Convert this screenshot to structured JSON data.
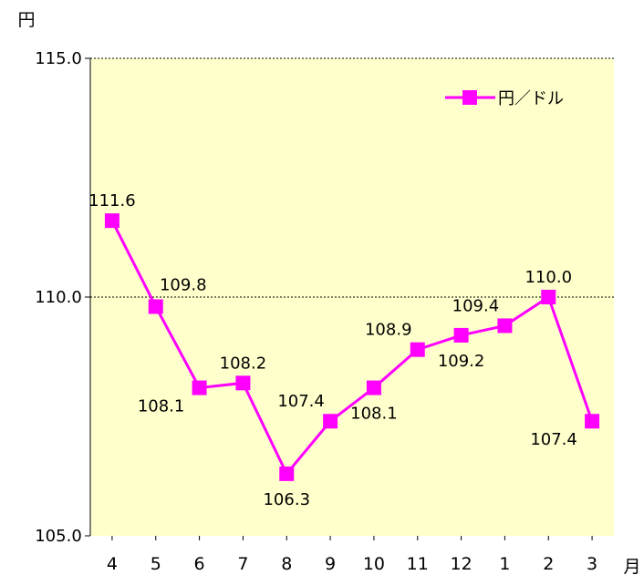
{
  "chart_data": {
    "type": "line",
    "y_unit": "円",
    "x_unit": "月",
    "categories": [
      "4",
      "5",
      "6",
      "7",
      "8",
      "9",
      "10",
      "11",
      "12",
      "1",
      "2",
      "3"
    ],
    "series": [
      {
        "name": "円／ドル",
        "values": [
          111.6,
          109.8,
          108.1,
          108.2,
          106.3,
          107.4,
          108.1,
          108.9,
          109.2,
          109.4,
          110.0,
          107.4
        ],
        "data_labels": [
          "111.6",
          "109.8",
          "108.1",
          "108.2",
          "106.3",
          "107.4",
          "108.1",
          "108.9",
          "109.2",
          "109.4",
          "110.0",
          "107.4"
        ],
        "label_positions": [
          "above",
          "above-right",
          "below-left",
          "above",
          "below",
          "above-left",
          "below",
          "above-left",
          "below",
          "above-left",
          "above",
          "below-left"
        ]
      }
    ],
    "ylim": [
      105.0,
      115.0
    ],
    "y_ticks": [
      "105.0",
      "110.0",
      "115.0"
    ],
    "grid": "dashed at 110.0 and 115.0",
    "legend_position": "top-right",
    "colors": {
      "series": "#ff00ff",
      "plot_background": "#ffffcc",
      "gridline": "#000000",
      "axis": "#000000"
    }
  }
}
